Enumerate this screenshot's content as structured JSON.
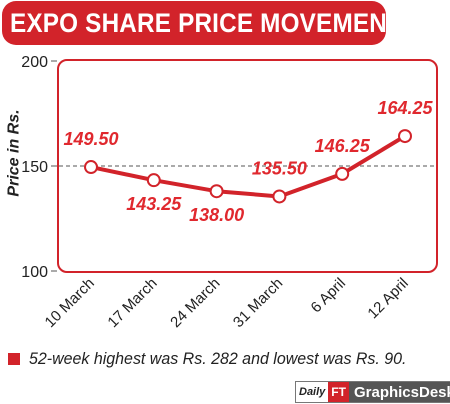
{
  "title": "EXPO SHARE PRICE MOVEMENT",
  "chart_data": {
    "type": "line",
    "title": "EXPO SHARE PRICE MOVEMENT",
    "xlabel": "",
    "ylabel": "Price in Rs.",
    "categories": [
      "10 March",
      "17 March",
      "24 March",
      "31 March",
      "6 April",
      "12 April"
    ],
    "values": [
      149.5,
      143.25,
      138.0,
      135.5,
      146.25,
      164.25
    ],
    "data_labels": [
      "149.50",
      "143.25",
      "138.00",
      "135.50",
      "146.25",
      "164.25"
    ],
    "ylim": [
      100,
      200
    ],
    "yticks": [
      100,
      150,
      200
    ],
    "grid": "dashed horizontal at 150",
    "colors": {
      "line": "#d2232a",
      "label": "#e0282e",
      "marker_fill": "#ffffff"
    }
  },
  "footnote": "52-week highest was Rs. 282 and lowest was Rs. 90.",
  "credit": {
    "logo_primary": "Daily",
    "logo_secondary": "FT",
    "desk": "GraphicsDesk"
  }
}
